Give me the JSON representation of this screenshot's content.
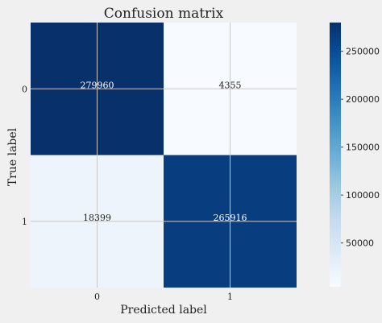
{
  "chart_data": {
    "type": "heatmap",
    "title": "Confusion matrix",
    "xlabel": "Predicted label",
    "ylabel": "True label",
    "x_categories": [
      "0",
      "1"
    ],
    "y_categories": [
      "0",
      "1"
    ],
    "values": [
      [
        279960,
        4355
      ],
      [
        18399,
        265916
      ]
    ],
    "colormap": "Blues",
    "grid": true,
    "colorbar": {
      "ticks": [
        50000,
        100000,
        150000,
        200000,
        250000
      ],
      "tick_labels": [
        "50000",
        "100000",
        "150000",
        "200000",
        "250000"
      ],
      "range": [
        4355,
        279960
      ]
    }
  },
  "colors": {
    "background": "#f0f0f0",
    "grid": "#c8c8c8",
    "low": "#f7fbff",
    "high": "#08306b"
  }
}
